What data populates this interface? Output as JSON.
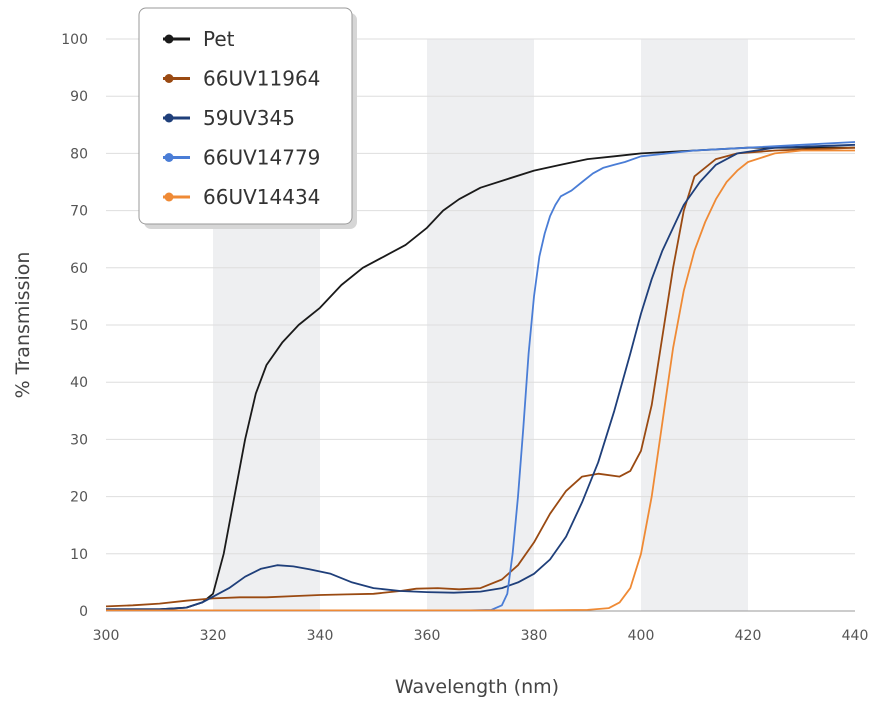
{
  "chart_data": {
    "type": "line",
    "title": "",
    "xlabel": "Wavelength (nm)",
    "ylabel": "% Transmission",
    "xlim": [
      300,
      440
    ],
    "ylim": [
      0,
      100
    ],
    "x_ticks": [
      300,
      320,
      340,
      360,
      380,
      400,
      420,
      440
    ],
    "y_ticks": [
      0,
      10,
      20,
      30,
      40,
      50,
      60,
      70,
      80,
      90,
      100
    ],
    "x_tick_labels": [
      "300",
      "320",
      "340",
      "360",
      "380",
      "400",
      "420",
      "440"
    ],
    "y_tick_labels": [
      "0",
      "10",
      "20",
      "30",
      "40",
      "50",
      "60",
      "70",
      "80",
      "90",
      "100"
    ],
    "grid": true,
    "background_bands": [
      [
        320,
        340
      ],
      [
        360,
        380
      ],
      [
        400,
        420
      ]
    ],
    "legend_position": "top-left",
    "series": [
      {
        "name": "Pet",
        "color": "#1a1a1a",
        "points": [
          [
            300,
            0.3
          ],
          [
            310,
            0.3
          ],
          [
            315,
            0.6
          ],
          [
            318,
            1.5
          ],
          [
            320,
            3
          ],
          [
            322,
            10
          ],
          [
            324,
            20
          ],
          [
            326,
            30
          ],
          [
            328,
            38
          ],
          [
            330,
            43
          ],
          [
            333,
            47
          ],
          [
            336,
            50
          ],
          [
            340,
            53
          ],
          [
            344,
            57
          ],
          [
            348,
            60
          ],
          [
            352,
            62
          ],
          [
            356,
            64
          ],
          [
            360,
            67
          ],
          [
            363,
            70
          ],
          [
            366,
            72
          ],
          [
            370,
            74
          ],
          [
            375,
            75.5
          ],
          [
            380,
            77
          ],
          [
            385,
            78
          ],
          [
            390,
            79
          ],
          [
            395,
            79.5
          ],
          [
            400,
            80
          ],
          [
            410,
            80.5
          ],
          [
            420,
            81
          ],
          [
            430,
            81
          ],
          [
            440,
            81
          ]
        ]
      },
      {
        "name": "66UV11964",
        "color": "#9a4a12",
        "points": [
          [
            300,
            0.8
          ],
          [
            305,
            1
          ],
          [
            310,
            1.3
          ],
          [
            315,
            1.8
          ],
          [
            320,
            2.2
          ],
          [
            325,
            2.4
          ],
          [
            330,
            2.4
          ],
          [
            335,
            2.6
          ],
          [
            340,
            2.8
          ],
          [
            345,
            2.9
          ],
          [
            350,
            3
          ],
          [
            355,
            3.5
          ],
          [
            358,
            3.9
          ],
          [
            362,
            4
          ],
          [
            366,
            3.8
          ],
          [
            370,
            4
          ],
          [
            374,
            5.5
          ],
          [
            377,
            8
          ],
          [
            380,
            12
          ],
          [
            383,
            17
          ],
          [
            386,
            21
          ],
          [
            389,
            23.5
          ],
          [
            392,
            24
          ],
          [
            396,
            23.5
          ],
          [
            398,
            24.5
          ],
          [
            400,
            28
          ],
          [
            402,
            36
          ],
          [
            404,
            48
          ],
          [
            406,
            60
          ],
          [
            408,
            70
          ],
          [
            410,
            76
          ],
          [
            414,
            79
          ],
          [
            418,
            80
          ],
          [
            425,
            80.5
          ],
          [
            440,
            81
          ]
        ]
      },
      {
        "name": "59UV345",
        "color": "#1f3f7a",
        "points": [
          [
            300,
            0.3
          ],
          [
            310,
            0.3
          ],
          [
            315,
            0.6
          ],
          [
            318,
            1.5
          ],
          [
            320,
            2.5
          ],
          [
            323,
            4
          ],
          [
            326,
            6
          ],
          [
            329,
            7.4
          ],
          [
            332,
            8
          ],
          [
            335,
            7.8
          ],
          [
            338,
            7.3
          ],
          [
            342,
            6.5
          ],
          [
            346,
            5
          ],
          [
            350,
            4
          ],
          [
            355,
            3.5
          ],
          [
            360,
            3.3
          ],
          [
            365,
            3.2
          ],
          [
            370,
            3.4
          ],
          [
            374,
            4
          ],
          [
            377,
            5
          ],
          [
            380,
            6.5
          ],
          [
            383,
            9
          ],
          [
            386,
            13
          ],
          [
            389,
            19
          ],
          [
            392,
            26
          ],
          [
            395,
            35
          ],
          [
            398,
            45
          ],
          [
            400,
            52
          ],
          [
            402,
            58
          ],
          [
            404,
            63
          ],
          [
            406,
            67
          ],
          [
            408,
            71
          ],
          [
            411,
            75
          ],
          [
            414,
            78
          ],
          [
            418,
            80
          ],
          [
            425,
            81
          ],
          [
            440,
            81.5
          ]
        ]
      },
      {
        "name": "66UV14779",
        "color": "#4a7dd6",
        "points": [
          [
            300,
            0.1
          ],
          [
            320,
            0.1
          ],
          [
            340,
            0.1
          ],
          [
            360,
            0.1
          ],
          [
            368,
            0.1
          ],
          [
            372,
            0.2
          ],
          [
            374,
            1
          ],
          [
            375,
            3
          ],
          [
            376,
            10
          ],
          [
            377,
            20
          ],
          [
            378,
            32
          ],
          [
            379,
            45
          ],
          [
            380,
            55
          ],
          [
            381,
            62
          ],
          [
            382,
            66
          ],
          [
            383,
            69
          ],
          [
            384,
            71
          ],
          [
            385,
            72.5
          ],
          [
            387,
            73.5
          ],
          [
            389,
            75
          ],
          [
            391,
            76.5
          ],
          [
            393,
            77.5
          ],
          [
            395,
            78
          ],
          [
            397,
            78.5
          ],
          [
            400,
            79.5
          ],
          [
            405,
            80
          ],
          [
            410,
            80.5
          ],
          [
            420,
            81
          ],
          [
            430,
            81.5
          ],
          [
            440,
            82
          ]
        ]
      },
      {
        "name": "66UV14434",
        "color": "#ef8a35",
        "points": [
          [
            300,
            0.1
          ],
          [
            320,
            0.1
          ],
          [
            340,
            0.1
          ],
          [
            360,
            0.1
          ],
          [
            380,
            0.1
          ],
          [
            390,
            0.2
          ],
          [
            394,
            0.5
          ],
          [
            396,
            1.5
          ],
          [
            398,
            4
          ],
          [
            400,
            10
          ],
          [
            402,
            20
          ],
          [
            404,
            33
          ],
          [
            406,
            46
          ],
          [
            408,
            56
          ],
          [
            410,
            63
          ],
          [
            412,
            68
          ],
          [
            414,
            72
          ],
          [
            416,
            75
          ],
          [
            418,
            77
          ],
          [
            420,
            78.5
          ],
          [
            425,
            80
          ],
          [
            430,
            80.5
          ],
          [
            440,
            80.5
          ]
        ]
      }
    ]
  }
}
